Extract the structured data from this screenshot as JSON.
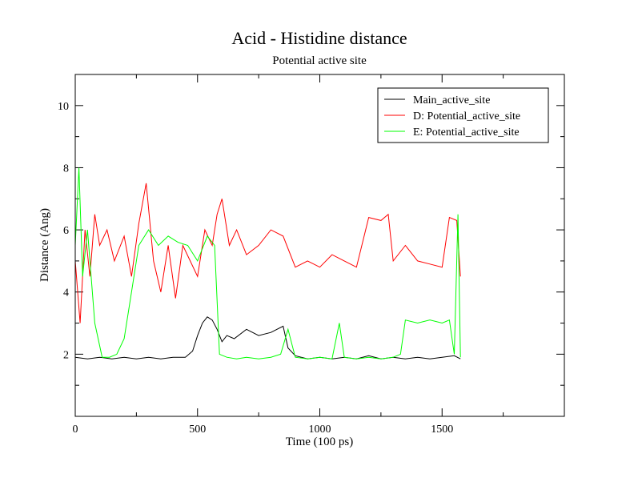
{
  "chart_data": {
    "type": "line",
    "title": "Acid - Histidine distance",
    "subtitle": "Potential active site",
    "xlabel": "Time (100 ps)",
    "ylabel": "Distance (Ang)",
    "xlim": [
      0,
      2000
    ],
    "ylim": [
      0,
      11
    ],
    "xticks": [
      0,
      500,
      1000,
      1500
    ],
    "xtick_labels": [
      "0",
      "500",
      "1000",
      "1500"
    ],
    "yticks": [
      2,
      4,
      6,
      8,
      10
    ],
    "ytick_labels": [
      "2",
      "4",
      "6",
      "8",
      "10"
    ],
    "grid": false,
    "legend_position": "top-right",
    "series": [
      {
        "name": "Main_active_site",
        "color": "#000000",
        "x": [
          0,
          50,
          100,
          150,
          200,
          250,
          300,
          350,
          400,
          450,
          480,
          500,
          520,
          540,
          560,
          580,
          600,
          620,
          650,
          700,
          750,
          800,
          850,
          870,
          900,
          950,
          1000,
          1050,
          1100,
          1150,
          1200,
          1250,
          1300,
          1350,
          1400,
          1450,
          1500,
          1550,
          1575
        ],
        "y": [
          1.9,
          1.85,
          1.9,
          1.85,
          1.9,
          1.85,
          1.9,
          1.85,
          1.9,
          1.9,
          2.1,
          2.6,
          3.0,
          3.2,
          3.1,
          2.8,
          2.4,
          2.6,
          2.5,
          2.8,
          2.6,
          2.7,
          2.9,
          2.2,
          1.95,
          1.85,
          1.9,
          1.85,
          1.9,
          1.85,
          1.95,
          1.85,
          1.9,
          1.85,
          1.9,
          1.85,
          1.9,
          1.95,
          1.85
        ]
      },
      {
        "name": "D: Potential_active_site",
        "color": "#ff0000",
        "x": [
          0,
          20,
          40,
          60,
          80,
          100,
          130,
          160,
          200,
          230,
          260,
          290,
          320,
          350,
          380,
          410,
          440,
          470,
          500,
          530,
          560,
          580,
          600,
          630,
          660,
          700,
          750,
          800,
          850,
          900,
          950,
          1000,
          1050,
          1100,
          1150,
          1200,
          1250,
          1280,
          1300,
          1350,
          1400,
          1450,
          1500,
          1530,
          1560,
          1575
        ],
        "y": [
          5.0,
          3.0,
          6.0,
          4.5,
          6.5,
          5.5,
          6.0,
          5.0,
          5.8,
          4.5,
          6.2,
          7.5,
          5.0,
          4.0,
          5.5,
          3.8,
          5.5,
          5.0,
          4.5,
          6.0,
          5.5,
          6.5,
          7.0,
          5.5,
          6.0,
          5.2,
          5.5,
          6.0,
          5.8,
          4.8,
          5.0,
          4.8,
          5.2,
          5.0,
          4.8,
          6.4,
          6.3,
          6.5,
          5.0,
          5.5,
          5.0,
          4.9,
          4.8,
          6.4,
          6.3,
          4.5
        ]
      },
      {
        "name": "E: Potential_active_site",
        "color": "#00ff00",
        "x": [
          0,
          15,
          30,
          50,
          80,
          110,
          140,
          170,
          200,
          230,
          260,
          300,
          340,
          380,
          420,
          460,
          500,
          540,
          570,
          590,
          620,
          660,
          700,
          750,
          800,
          840,
          870,
          900,
          950,
          1000,
          1050,
          1080,
          1100,
          1150,
          1200,
          1250,
          1300,
          1330,
          1350,
          1400,
          1450,
          1500,
          1530,
          1550,
          1565,
          1575
        ],
        "y": [
          5.5,
          8.0,
          4.5,
          6.0,
          3.0,
          1.9,
          1.9,
          2.0,
          2.5,
          4.0,
          5.5,
          6.0,
          5.5,
          5.8,
          5.6,
          5.5,
          5.0,
          5.8,
          5.5,
          2.0,
          1.9,
          1.85,
          1.9,
          1.85,
          1.9,
          2.0,
          2.8,
          1.9,
          1.85,
          1.9,
          1.85,
          3.0,
          1.9,
          1.85,
          1.9,
          1.85,
          1.9,
          2.0,
          3.1,
          3.0,
          3.1,
          3.0,
          3.1,
          2.0,
          6.5,
          1.9
        ]
      }
    ]
  }
}
